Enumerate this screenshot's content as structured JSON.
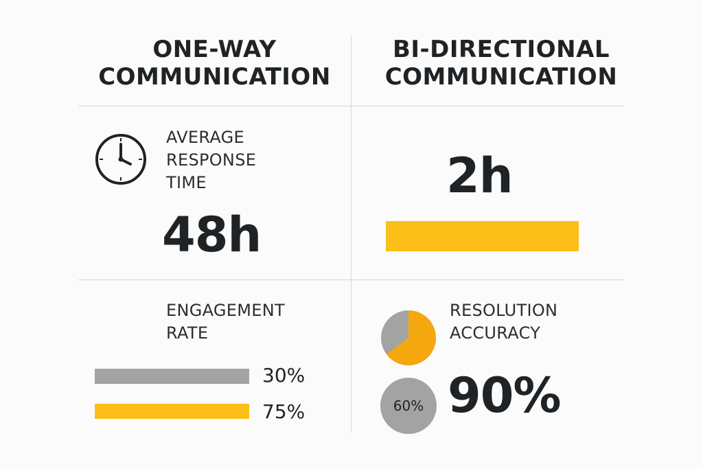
{
  "columns": {
    "left_title_line1": "ONE-WAY",
    "left_title_line2": "COMMUNICATION",
    "right_title_line1": "BI-DIRECTIONAL",
    "right_title_line2": "COMMUNICATION"
  },
  "response_time": {
    "label_line1": "AVERAGE",
    "label_line2": "RESPONSE",
    "label_line3": "TIME",
    "one_way_value": "48h",
    "bi_directional_value": "2h",
    "bi_directional_bar_fraction": 1.0
  },
  "engagement": {
    "label_line1": "ENGAGEMENT",
    "label_line2": "RATE",
    "one_way_percent": 30,
    "one_way_label": "30%",
    "bi_directional_percent": 75,
    "bi_directional_label": "75%"
  },
  "resolution": {
    "label_line1": "RESOLUTION",
    "label_line2": "ACCURACY",
    "pie_fraction": 0.9,
    "one_way_label": "60%",
    "bi_directional_label": "90%"
  },
  "colors": {
    "accent": "#fbbf18",
    "accent_dark": "#f5a80d",
    "neutral": "#a3a3a3",
    "text": "#1f2326",
    "divider": "#d8d8d8"
  },
  "icons": {
    "clock": "clock-icon"
  }
}
